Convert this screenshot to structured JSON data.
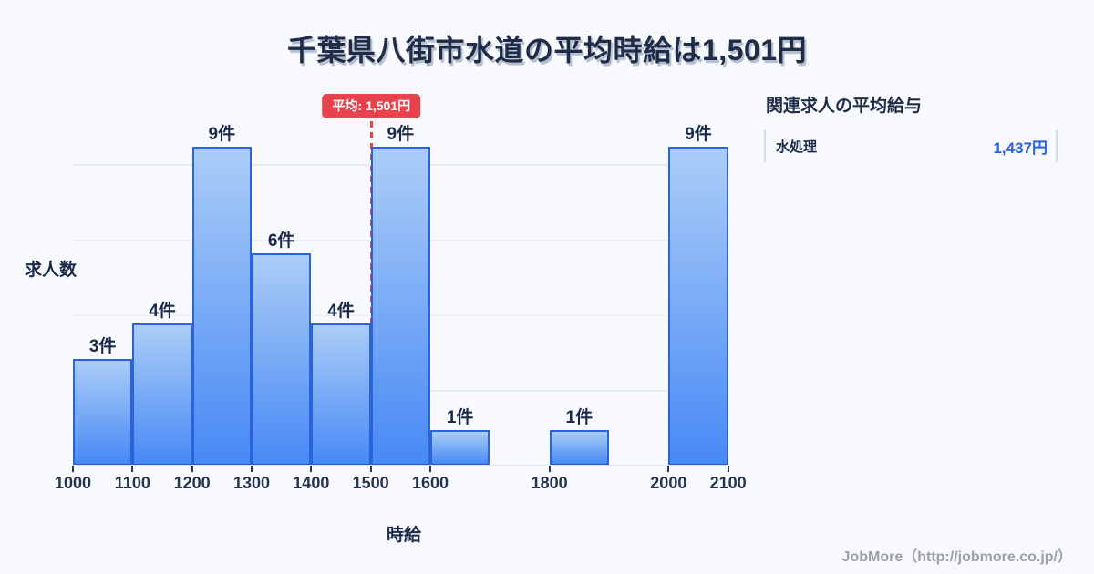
{
  "title": {
    "text": "千葉県八街市水道の平均時給は1,501円"
  },
  "chart_data": {
    "type": "bar",
    "title": "千葉県八街市水道の平均時給は1,501円",
    "xlabel": "時給",
    "ylabel": "求人数",
    "x_unit": "円",
    "bin_width": 100,
    "xlim": [
      1000,
      2100
    ],
    "ylim": [
      0,
      9.7
    ],
    "grid": true,
    "x_ticks": [
      "1000",
      "1100",
      "1200",
      "1300",
      "1400",
      "1500",
      "1600",
      "1800",
      "2000",
      "2100"
    ],
    "bins": [
      {
        "start": 1000,
        "end": 1100,
        "count": 3,
        "label": "3件"
      },
      {
        "start": 1100,
        "end": 1200,
        "count": 4,
        "label": "4件"
      },
      {
        "start": 1200,
        "end": 1300,
        "count": 9,
        "label": "9件"
      },
      {
        "start": 1300,
        "end": 1400,
        "count": 6,
        "label": "6件"
      },
      {
        "start": 1400,
        "end": 1500,
        "count": 4,
        "label": "4件"
      },
      {
        "start": 1500,
        "end": 1600,
        "count": 9,
        "label": "9件"
      },
      {
        "start": 1600,
        "end": 1700,
        "count": 1,
        "label": "1件"
      },
      {
        "start": 1700,
        "end": 1800,
        "count": 0,
        "label": ""
      },
      {
        "start": 1800,
        "end": 1900,
        "count": 1,
        "label": "1件"
      },
      {
        "start": 1900,
        "end": 2000,
        "count": 0,
        "label": ""
      },
      {
        "start": 2000,
        "end": 2100,
        "count": 9,
        "label": "9件"
      }
    ],
    "average": {
      "value": 1501,
      "label": "平均: 1,501円"
    }
  },
  "side_panel": {
    "heading": "関連求人の平均給与",
    "rows": [
      {
        "name": "水処理",
        "value": "1,437円"
      }
    ]
  },
  "footer": {
    "text": "JobMore（http://jobmore.co.jp/）"
  },
  "colors": {
    "background": "#f7f9fc",
    "title": "#1f2c47",
    "bar_fill_top": "#abcdf7",
    "bar_fill_bottom": "#4789f5",
    "bar_border": "#2a63da",
    "grid_line": "#e9edf3",
    "axis_line": "#dfe3ea",
    "tick": "#2b3750",
    "average_line": "#e8423e",
    "average_badge_bg": "#e8424d",
    "average_badge_text": "#ffffff",
    "value_accent": "#2b62de",
    "footer_text": "#9ca0a7"
  }
}
